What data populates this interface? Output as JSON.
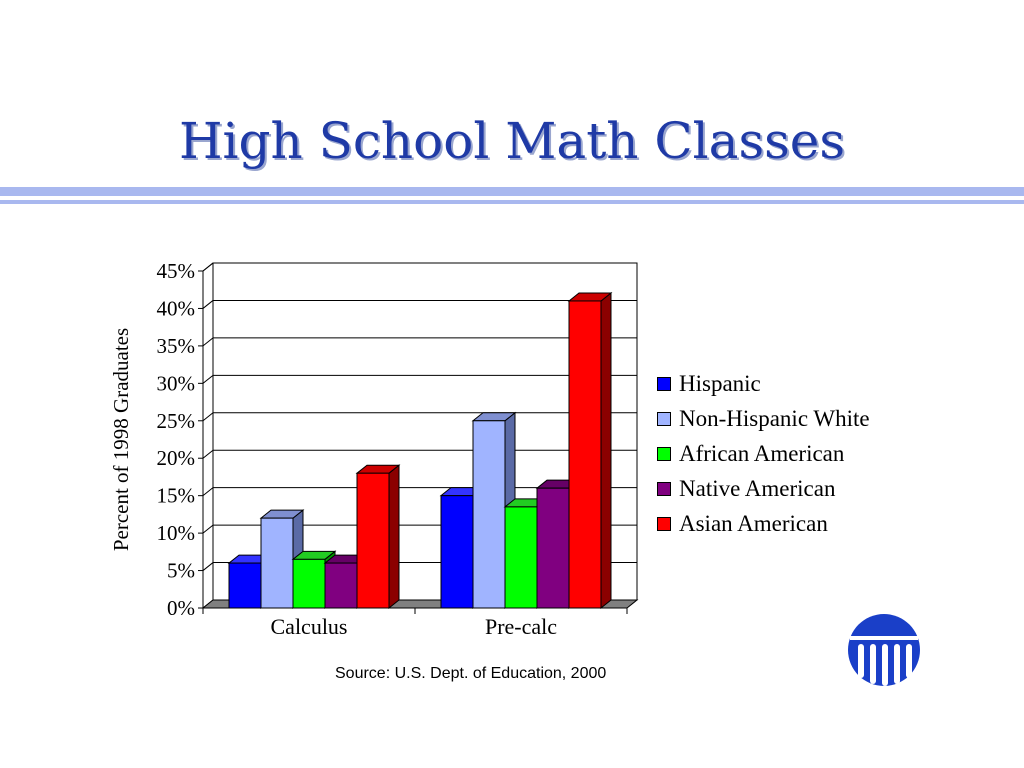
{
  "slide": {
    "title": "High School Math Classes",
    "source": "Source:  U.S. Dept. of Education, 2000",
    "accent_color": "#1f3aa6",
    "rule_color": "#a9b8ef"
  },
  "logo": {
    "icon": "columns-seal-icon",
    "color": "#1a3fc8"
  },
  "chart_data": {
    "type": "bar",
    "style": "3d-clustered",
    "categories": [
      "Calculus",
      "Pre-calc"
    ],
    "series": [
      {
        "name": "Hispanic",
        "values": [
          6,
          15
        ],
        "color": "#0000ff",
        "side": "#00008b",
        "top": "#3333ff"
      },
      {
        "name": "Non-Hispanic White",
        "values": [
          12,
          25
        ],
        "color": "#a0b4ff",
        "side": "#5a6aa6",
        "top": "#7f8fd0"
      },
      {
        "name": "African American",
        "values": [
          6.5,
          13.5
        ],
        "color": "#00ff00",
        "side": "#009900",
        "top": "#22cc22"
      },
      {
        "name": "Native American",
        "values": [
          6,
          16
        ],
        "color": "#800080",
        "side": "#4d004d",
        "top": "#660066"
      },
      {
        "name": "Asian American",
        "values": [
          18,
          41
        ],
        "color": "#ff0000",
        "side": "#8b0000",
        "top": "#cc0000"
      }
    ],
    "ylabel": "Percent of 1998 Graduates",
    "xlabel": "",
    "ylim": [
      0,
      45
    ],
    "yticks": [
      0,
      5,
      10,
      15,
      20,
      25,
      30,
      35,
      40,
      45
    ],
    "tick_labels": [
      "0%",
      "5%",
      "10%",
      "15%",
      "20%",
      "25%",
      "30%",
      "35%",
      "40%",
      "45%"
    ],
    "grid": true,
    "legend": "right"
  }
}
